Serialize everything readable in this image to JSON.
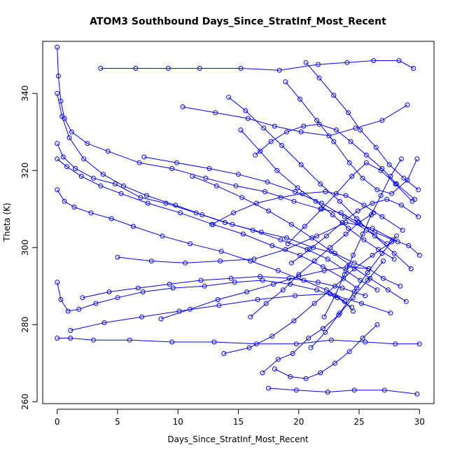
{
  "chart_data": {
    "type": "line",
    "title": "ATOM3 Southbound Days_Since_StratInf_Most_Recent",
    "xlabel": "Days_Since_StratInf_Most_Recent",
    "ylabel": "Theta (K)",
    "xlim": [
      -1.2,
      31.2
    ],
    "ylim": [
      259.5,
      353.5
    ],
    "x_ticks": [
      0,
      5,
      10,
      15,
      20,
      25,
      30
    ],
    "y_ticks": [
      260,
      280,
      300,
      320,
      340
    ],
    "grid": false,
    "legend": "none",
    "point_marker": "open-circle",
    "series_color": "#0000ff",
    "series": [
      {
        "x": [
          0.0,
          0.1,
          0.3,
          0.6,
          1.2,
          2.5,
          4.2,
          6.8,
          9.5,
          12.3,
          14.8,
          17.2,
          19.6,
          21.8,
          23.5,
          24.9,
          26.3,
          27.8,
          29.1,
          30.0
        ],
        "y": [
          352.0,
          344.5,
          338.0,
          333.5,
          330.0,
          327.0,
          325.0,
          322.0,
          320.5,
          318.0,
          316.0,
          314.5,
          312.0,
          310.0,
          309.0,
          306.5,
          304.0,
          302.0,
          300.5,
          298.0
        ]
      },
      {
        "x": [
          0.0,
          0.4,
          1.0,
          2.2,
          3.8,
          5.5,
          7.4,
          9.8,
          12.0,
          14.5,
          16.9,
          19.0,
          21.2,
          23.0,
          24.6,
          25.8,
          27.0,
          28.4
        ],
        "y": [
          340.0,
          334.0,
          328.5,
          323.0,
          319.0,
          316.0,
          313.5,
          311.0,
          308.5,
          306.0,
          304.0,
          302.5,
          300.0,
          298.5,
          296.0,
          294.5,
          292.0,
          290.0
        ]
      },
      {
        "x": [
          0.0,
          0.5,
          1.5,
          3.0,
          4.8,
          6.9,
          9.0,
          11.5,
          13.9,
          16.2,
          18.5,
          20.7,
          22.4,
          23.9,
          25.1,
          26.5
        ],
        "y": [
          327.0,
          323.5,
          320.5,
          318.0,
          316.5,
          313.0,
          311.5,
          309.0,
          306.5,
          304.5,
          302.0,
          299.5,
          297.0,
          294.0,
          291.5,
          289.0
        ]
      },
      {
        "x": [
          0.0,
          0.8,
          2.0,
          3.6,
          5.3,
          7.5,
          10.2,
          12.9,
          15.4,
          17.8,
          20.1,
          22.0,
          23.7,
          24.8
        ],
        "y": [
          323.0,
          321.0,
          318.5,
          316.0,
          314.0,
          311.5,
          309.0,
          306.0,
          303.5,
          300.5,
          298.0,
          295.0,
          292.0,
          289.5
        ]
      },
      {
        "x": [
          0.0,
          0.6,
          1.4,
          2.8,
          4.5,
          6.3,
          8.7,
          11.0,
          13.6,
          16.0,
          18.3,
          20.4,
          22.3,
          23.8,
          24.5
        ],
        "y": [
          315.0,
          312.0,
          310.5,
          309.0,
          307.5,
          305.5,
          303.0,
          301.0,
          299.0,
          296.5,
          294.0,
          291.5,
          289.0,
          286.0,
          283.5
        ]
      },
      {
        "x": [
          0.0,
          0.3,
          0.9,
          1.8,
          3.2,
          5.0,
          7.1,
          9.6,
          12.2,
          14.7,
          17.0,
          19.3,
          21.5,
          23.2,
          24.4
        ],
        "y": [
          291.0,
          286.5,
          283.5,
          284.0,
          285.5,
          287.0,
          288.5,
          289.5,
          290.0,
          291.0,
          291.5,
          290.5,
          289.0,
          287.0,
          284.5
        ]
      },
      {
        "x": [
          0.0,
          1.1,
          3.0,
          6.0,
          9.5,
          13.0,
          16.5,
          19.8,
          22.7,
          25.5,
          28.0,
          30.0
        ],
        "y": [
          276.5,
          276.5,
          276.0,
          276.0,
          275.5,
          275.5,
          275.0,
          275.0,
          276.0,
          275.5,
          275.0,
          275.0
        ]
      },
      {
        "x": [
          3.6,
          6.5,
          9.2,
          11.8,
          15.2,
          18.4,
          21.6,
          24.0,
          26.2,
          28.3,
          29.5
        ],
        "y": [
          346.5,
          346.5,
          346.5,
          346.5,
          346.5,
          346.0,
          347.5,
          348.0,
          348.5,
          348.5,
          346.5
        ]
      },
      {
        "x": [
          10.4,
          13.1,
          15.8,
          18.0,
          20.2,
          22.5,
          24.7,
          26.9,
          29.0
        ],
        "y": [
          336.5,
          335.0,
          333.5,
          331.5,
          330.0,
          329.0,
          331.0,
          333.0,
          337.0
        ]
      },
      {
        "x": [
          1.1,
          3.9,
          7.0,
          10.1,
          13.4,
          16.6,
          19.7,
          22.6,
          25.2,
          27.6
        ],
        "y": [
          278.5,
          280.5,
          282.0,
          283.5,
          285.0,
          286.5,
          287.5,
          288.0,
          285.5,
          283.0
        ]
      },
      {
        "x": [
          15.2,
          16.8,
          18.2,
          19.9,
          21.4,
          22.8,
          24.1,
          25.4,
          26.6,
          27.9
        ],
        "y": [
          330.5,
          325.0,
          320.0,
          315.5,
          312.0,
          308.5,
          305.0,
          302.0,
          299.5,
          297.0
        ]
      },
      {
        "x": [
          16.0,
          17.3,
          18.7,
          20.0,
          21.3,
          22.6,
          23.9,
          25.0,
          26.2
        ],
        "y": [
          282.0,
          285.5,
          289.0,
          293.0,
          296.5,
          300.0,
          303.5,
          306.5,
          309.0
        ]
      },
      {
        "x": [
          17.0,
          18.3,
          19.5,
          20.8,
          22.0,
          23.3,
          24.5,
          25.7,
          27.0
        ],
        "y": [
          267.5,
          271.0,
          272.5,
          276.5,
          279.0,
          282.5,
          287.0,
          291.5,
          296.5
        ]
      },
      {
        "x": [
          17.5,
          19.8,
          22.4,
          24.6,
          27.1,
          29.8
        ],
        "y": [
          263.5,
          263.0,
          262.5,
          263.0,
          263.0,
          262.0
        ]
      },
      {
        "x": [
          18.9,
          20.1,
          21.5,
          22.9,
          24.2,
          25.3,
          26.5,
          27.7,
          29.0,
          29.8
        ],
        "y": [
          343.0,
          338.5,
          333.0,
          327.5,
          322.0,
          318.0,
          315.0,
          314.0,
          317.5,
          323.0
        ]
      },
      {
        "x": [
          19.1,
          20.5,
          21.9,
          23.1,
          24.4,
          25.6,
          26.8,
          28.0,
          29.4
        ],
        "y": [
          301.0,
          305.5,
          310.0,
          314.0,
          318.5,
          322.0,
          320.0,
          316.5,
          312.0
        ]
      },
      {
        "x": [
          20.6,
          21.7,
          22.9,
          24.1,
          25.1,
          26.4,
          27.5,
          28.7,
          29.9
        ],
        "y": [
          348.0,
          344.0,
          339.5,
          335.0,
          330.5,
          326.0,
          321.5,
          318.0,
          315.0
        ]
      },
      {
        "x": [
          5.0,
          7.8,
          10.6,
          13.5,
          16.3,
          18.9,
          21.5,
          23.9,
          26.1,
          28.2
        ],
        "y": [
          297.5,
          296.5,
          296.0,
          296.5,
          297.0,
          299.5,
          303.0,
          306.5,
          305.0,
          301.5
        ]
      },
      {
        "x": [
          13.8,
          15.9,
          17.8,
          19.6,
          21.3,
          23.0,
          24.6,
          26.1,
          27.7
        ],
        "y": [
          272.5,
          274.0,
          277.0,
          281.0,
          285.5,
          290.0,
          294.5,
          298.0,
          301.5
        ]
      },
      {
        "x": [
          2.1,
          4.3,
          6.7,
          9.3,
          11.9,
          14.4,
          16.8,
          19.2,
          21.6,
          23.6,
          25.5
        ],
        "y": [
          287.0,
          288.5,
          289.5,
          290.5,
          291.5,
          292.0,
          292.5,
          292.0,
          291.0,
          289.5,
          287.5
        ]
      },
      {
        "x": [
          7.2,
          9.9,
          12.6,
          15.0,
          17.4,
          19.7,
          21.9,
          23.8,
          25.6,
          27.3
        ],
        "y": [
          323.5,
          322.0,
          320.5,
          319.0,
          317.0,
          314.5,
          311.5,
          308.0,
          304.5,
          301.0
        ]
      },
      {
        "x": [
          11.2,
          13.2,
          15.3,
          17.5,
          19.4,
          21.1,
          22.7,
          24.2,
          25.9,
          27.4,
          28.9
        ],
        "y": [
          318.5,
          316.0,
          313.0,
          309.5,
          306.0,
          302.5,
          299.0,
          295.5,
          292.0,
          289.0,
          286.0
        ]
      },
      {
        "x": [
          14.2,
          15.6,
          17.1,
          18.6,
          20.2,
          21.8,
          23.4,
          24.8,
          26.3,
          27.9,
          29.3
        ],
        "y": [
          339.0,
          335.5,
          331.0,
          326.5,
          321.5,
          316.5,
          312.0,
          307.5,
          303.0,
          298.5,
          294.5
        ]
      },
      {
        "x": [
          18.0,
          19.3,
          20.6,
          21.8,
          23.0,
          24.2,
          25.3,
          26.5
        ],
        "y": [
          268.5,
          266.5,
          266.0,
          267.5,
          270.0,
          273.0,
          276.5,
          280.0
        ]
      },
      {
        "x": [
          22.1,
          23.0,
          23.8,
          24.5,
          25.3,
          26.0,
          26.8,
          27.6,
          28.5
        ],
        "y": [
          282.0,
          287.5,
          293.0,
          298.0,
          303.5,
          308.5,
          313.5,
          318.5,
          323.0
        ]
      },
      {
        "x": [
          12.8,
          14.6,
          16.5,
          18.5,
          20.3,
          22.2,
          23.9,
          25.4,
          26.9,
          28.6
        ],
        "y": [
          306.0,
          309.0,
          311.5,
          313.0,
          314.0,
          314.5,
          313.5,
          311.0,
          308.0,
          304.5
        ]
      },
      {
        "x": [
          8.6,
          11.0,
          13.3,
          15.7,
          17.9,
          20.0,
          22.1,
          24.0,
          25.8
        ],
        "y": [
          281.5,
          284.0,
          286.5,
          288.5,
          290.5,
          292.5,
          294.0,
          295.0,
          294.5
        ]
      },
      {
        "x": [
          16.4,
          17.7,
          19.0,
          20.4,
          21.7,
          23.1,
          24.3,
          25.6,
          26.9,
          28.1,
          29.6
        ],
        "y": [
          324.0,
          327.5,
          330.0,
          331.5,
          332.0,
          330.5,
          327.5,
          324.0,
          320.5,
          316.5,
          312.5
        ]
      },
      {
        "x": [
          19.4,
          20.9,
          22.3,
          23.6,
          24.9,
          26.1,
          27.3,
          28.5,
          29.9
        ],
        "y": [
          296.0,
          299.5,
          303.0,
          306.5,
          309.5,
          311.5,
          312.5,
          311.0,
          308.0
        ]
      },
      {
        "x": [
          21.0,
          22.2,
          23.4,
          24.6,
          25.7,
          26.9,
          28.1
        ],
        "y": [
          274.0,
          278.0,
          283.0,
          288.5,
          293.5,
          298.5,
          303.0
        ]
      }
    ]
  }
}
